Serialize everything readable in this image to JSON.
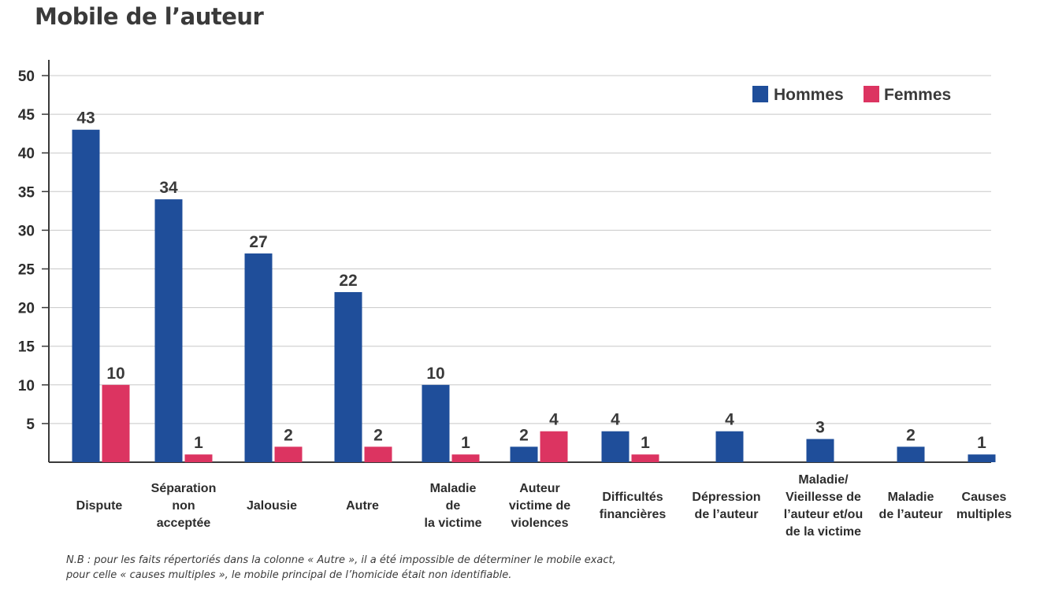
{
  "title": "Mobile de l’auteur",
  "note": {
    "line1": "N.B : pour les faits répertoriés dans la colonne « Autre », il a été impossible de déterminer le mobile exact,",
    "line2": "pour celle « causes multiples », le mobile principal de l’homicide était non identifiable."
  },
  "colors": {
    "hommes": "#1f4e9a",
    "femmes": "#dc3461",
    "grid": "#c8c8c8",
    "axis": "#3a3a3a"
  },
  "chart_data": {
    "type": "bar",
    "title": "Mobile de l’auteur",
    "xlabel": "",
    "ylabel": "",
    "ylim": [
      0,
      50
    ],
    "yticks": [
      5,
      10,
      15,
      20,
      25,
      30,
      35,
      40,
      45,
      50
    ],
    "grid": true,
    "legend": "top-right",
    "categories": [
      [
        "Dispute"
      ],
      [
        "Séparation",
        "non",
        "acceptée"
      ],
      [
        "Jalousie"
      ],
      [
        "Autre"
      ],
      [
        "Maladie",
        "de",
        "la victime"
      ],
      [
        "Auteur",
        "victime de",
        "violences"
      ],
      [
        "Difficultés",
        "financières"
      ],
      [
        "Dépression",
        "de l’auteur"
      ],
      [
        "Maladie/",
        "Vieillesse de",
        "l’auteur et/ou",
        "de la victime"
      ],
      [
        "Maladie",
        "de l’auteur"
      ],
      [
        "Causes",
        "multiples"
      ]
    ],
    "series": [
      {
        "name": "Hommes",
        "values": [
          43,
          34,
          27,
          22,
          10,
          2,
          4,
          4,
          3,
          2,
          1
        ]
      },
      {
        "name": "Femmes",
        "values": [
          10,
          1,
          2,
          2,
          1,
          4,
          1,
          null,
          null,
          null,
          null
        ]
      }
    ]
  }
}
